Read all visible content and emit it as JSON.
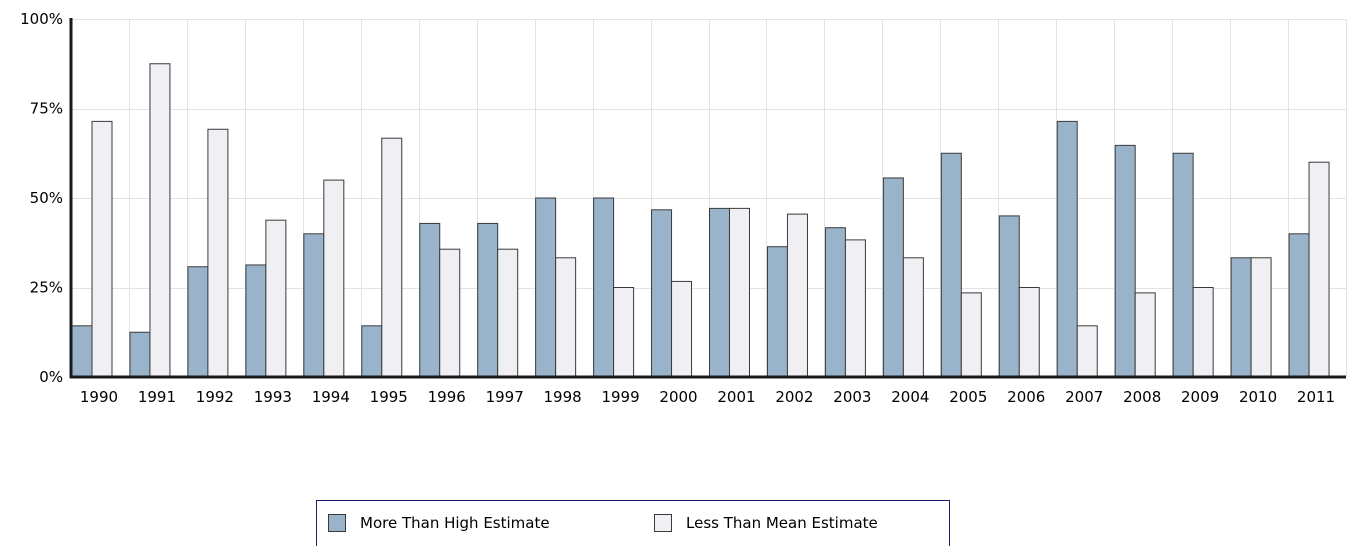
{
  "chart_data": {
    "type": "bar",
    "categories": [
      "1990",
      "1991",
      "1992",
      "1993",
      "1994",
      "1995",
      "1996",
      "1997",
      "1998",
      "1999",
      "2000",
      "2001",
      "2002",
      "2003",
      "2004",
      "2005",
      "2006",
      "2007",
      "2008",
      "2009",
      "2010",
      "2011"
    ],
    "series": [
      {
        "name": "More Than High Estimate",
        "color": "#99b3cb",
        "values": [
          14.3,
          12.5,
          30.8,
          31.3,
          40.0,
          14.3,
          42.9,
          42.9,
          50.0,
          50.0,
          46.7,
          47.1,
          36.4,
          41.7,
          55.6,
          62.5,
          45.0,
          71.4,
          64.7,
          62.5,
          33.3,
          40.0
        ]
      },
      {
        "name": "Less Than Mean Estimate",
        "color": "#f0f0f4",
        "values": [
          71.4,
          87.5,
          69.2,
          43.8,
          55.0,
          66.7,
          35.7,
          35.7,
          33.3,
          25.0,
          26.7,
          47.1,
          45.5,
          38.3,
          33.3,
          23.5,
          25.0,
          14.3,
          23.5,
          25.0,
          33.3,
          60.0
        ]
      }
    ],
    "yticks": [
      "0%",
      "25%",
      "50%",
      "75%",
      "100%"
    ],
    "ytick_values": [
      0,
      25,
      50,
      75,
      100
    ],
    "ylim": [
      0,
      100
    ],
    "grid": true,
    "legend_position": "bottom-center"
  }
}
